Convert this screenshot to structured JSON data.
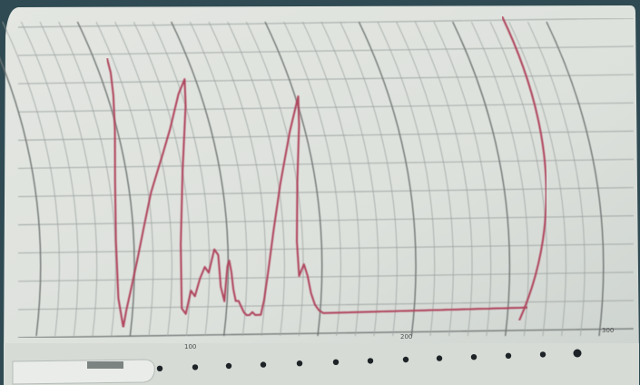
{
  "photo": {
    "subject": "chart-recorder-paper-strip",
    "colors": {
      "backdrop": "#2f4a52",
      "paper": "#dfe3de",
      "paper_shadow": "#c9cfca",
      "grid_line": "#9ea4a2",
      "major_line": "#6f7573",
      "trace": "#b0465e",
      "hole": "#1d2326",
      "clip": "#e9ece8"
    },
    "tick_labels": [
      "100",
      "200",
      "300"
    ]
  },
  "chart_data": {
    "type": "line",
    "title": "",
    "xlabel": "",
    "ylabel": "",
    "x_ticks": [
      "100",
      "200",
      "300"
    ],
    "xlim": [
      0,
      330
    ],
    "ylim": [
      0,
      100
    ],
    "grid": true,
    "series": [
      {
        "values_x": [
          0,
          4,
          8,
          12,
          16,
          20,
          24,
          28,
          30,
          33,
          36,
          39,
          42,
          45,
          48,
          51,
          54,
          57,
          60,
          63,
          66,
          69,
          72,
          75,
          78,
          81,
          84,
          87,
          90,
          93,
          96,
          99,
          100,
          101,
          103,
          105,
          107,
          109,
          111,
          113,
          115,
          117,
          119,
          121,
          123,
          125,
          127,
          129,
          131,
          133,
          136,
          139,
          142,
          145,
          148,
          151,
          154,
          157,
          160,
          163,
          166,
          169,
          172,
          175,
          178,
          181,
          184,
          187,
          190,
          193,
          196,
          199,
          202,
          205,
          208,
          211,
          214,
          217,
          220,
          223,
          226,
          229,
          232,
          235,
          238,
          241,
          244,
          247,
          250,
          253,
          256,
          259,
          262,
          265,
          268,
          271,
          274,
          277,
          280,
          283,
          286,
          289,
          292,
          295,
          298,
          301,
          304,
          307,
          310,
          313
        ],
        "values_y": [
          95,
          90,
          82,
          70,
          52,
          32,
          12,
          2,
          8,
          16,
          25,
          36,
          48,
          55,
          62,
          70,
          82,
          87,
          78,
          55,
          30,
          8,
          6,
          14,
          12,
          18,
          22,
          20,
          28,
          26,
          15,
          10,
          22,
          24,
          20,
          14,
          10,
          10,
          8,
          6,
          5,
          5,
          6,
          5,
          5,
          5,
          10,
          20,
          34,
          50,
          68,
          80,
          70,
          50,
          30,
          18,
          22,
          18,
          12,
          8,
          6,
          5,
          5,
          5,
          5,
          5,
          5,
          5,
          5,
          5,
          5,
          5,
          5,
          5,
          5,
          5,
          5,
          5,
          5,
          5,
          5,
          5,
          5,
          5,
          5,
          5,
          5,
          5,
          5,
          5,
          5,
          5,
          5,
          5,
          5,
          5,
          5,
          5,
          5,
          5,
          5,
          5,
          5,
          5,
          5,
          5,
          5,
          5,
          5,
          5
        ]
      }
    ]
  }
}
